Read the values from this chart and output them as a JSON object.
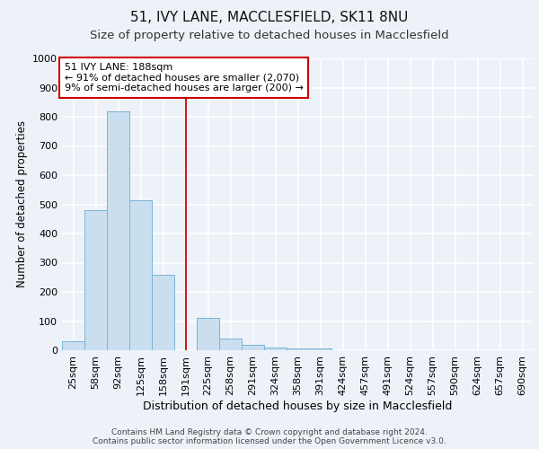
{
  "title1": "51, IVY LANE, MACCLESFIELD, SK11 8NU",
  "title2": "Size of property relative to detached houses in Macclesfield",
  "xlabel": "Distribution of detached houses by size in Macclesfield",
  "ylabel": "Number of detached properties",
  "categories": [
    "25sqm",
    "58sqm",
    "92sqm",
    "125sqm",
    "158sqm",
    "191sqm",
    "225sqm",
    "258sqm",
    "291sqm",
    "324sqm",
    "358sqm",
    "391sqm",
    "424sqm",
    "457sqm",
    "491sqm",
    "524sqm",
    "557sqm",
    "590sqm",
    "624sqm",
    "657sqm",
    "690sqm"
  ],
  "values": [
    30,
    480,
    820,
    515,
    260,
    0,
    110,
    40,
    20,
    8,
    5,
    5,
    0,
    0,
    0,
    0,
    0,
    0,
    0,
    0,
    0
  ],
  "bar_color": "#c9dff0",
  "bar_edge_color": "#7ab3d4",
  "vline_x": 5,
  "vline_color": "#cc0000",
  "annotation_title": "51 IVY LANE: 188sqm",
  "annotation_line1": "← 91% of detached houses are smaller (2,070)",
  "annotation_line2": "9% of semi-detached houses are larger (200) →",
  "annotation_box_color": "#ffffff",
  "annotation_box_edge": "#cc0000",
  "ylim": [
    0,
    1000
  ],
  "yticks": [
    0,
    100,
    200,
    300,
    400,
    500,
    600,
    700,
    800,
    900,
    1000
  ],
  "footer1": "Contains HM Land Registry data © Crown copyright and database right 2024.",
  "footer2": "Contains public sector information licensed under the Open Government Licence v3.0.",
  "bg_color": "#edf2f9",
  "plot_bg_color": "#edf2f9",
  "grid_color": "#ffffff",
  "title1_fontsize": 11,
  "title2_fontsize": 9.5,
  "xlabel_fontsize": 9,
  "ylabel_fontsize": 8.5,
  "tick_fontsize": 8,
  "annot_fontsize": 8,
  "footer_fontsize": 6.5
}
